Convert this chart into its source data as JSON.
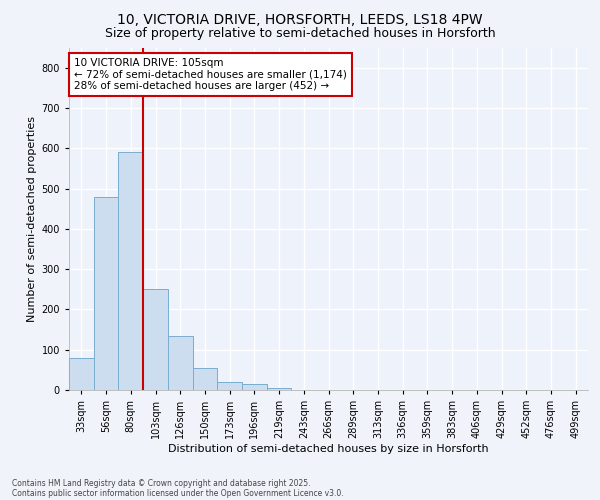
{
  "title_line1": "10, VICTORIA DRIVE, HORSFORTH, LEEDS, LS18 4PW",
  "title_line2": "Size of property relative to semi-detached houses in Horsforth",
  "xlabel": "Distribution of semi-detached houses by size in Horsforth",
  "ylabel": "Number of semi-detached properties",
  "categories": [
    "33sqm",
    "56sqm",
    "80sqm",
    "103sqm",
    "126sqm",
    "150sqm",
    "173sqm",
    "196sqm",
    "219sqm",
    "243sqm",
    "266sqm",
    "289sqm",
    "313sqm",
    "336sqm",
    "359sqm",
    "383sqm",
    "406sqm",
    "429sqm",
    "452sqm",
    "476sqm",
    "499sqm"
  ],
  "values": [
    80,
    478,
    590,
    250,
    135,
    55,
    20,
    15,
    5,
    0,
    0,
    0,
    0,
    0,
    0,
    0,
    0,
    0,
    0,
    0,
    0
  ],
  "bar_color": "#ccddf0",
  "bar_edge_color": "#7aadce",
  "vline_color": "#cc0000",
  "annotation_title": "10 VICTORIA DRIVE: 105sqm",
  "annotation_line1": "← 72% of semi-detached houses are smaller (1,174)",
  "annotation_line2": "28% of semi-detached houses are larger (452) →",
  "annotation_box_facecolor": "white",
  "annotation_box_edgecolor": "#cc0000",
  "ylim_max": 850,
  "yticks": [
    0,
    100,
    200,
    300,
    400,
    500,
    600,
    700,
    800
  ],
  "footer_line1": "Contains HM Land Registry data © Crown copyright and database right 2025.",
  "footer_line2": "Contains public sector information licensed under the Open Government Licence v3.0.",
  "fig_facecolor": "#f0f4fa",
  "plot_facecolor": "#eef3fb",
  "grid_color": "#ffffff",
  "title1_fontsize": 10,
  "title2_fontsize": 9,
  "ylabel_fontsize": 8,
  "xlabel_fontsize": 8,
  "tick_fontsize": 7,
  "annot_fontsize": 7.5,
  "footer_fontsize": 5.5
}
